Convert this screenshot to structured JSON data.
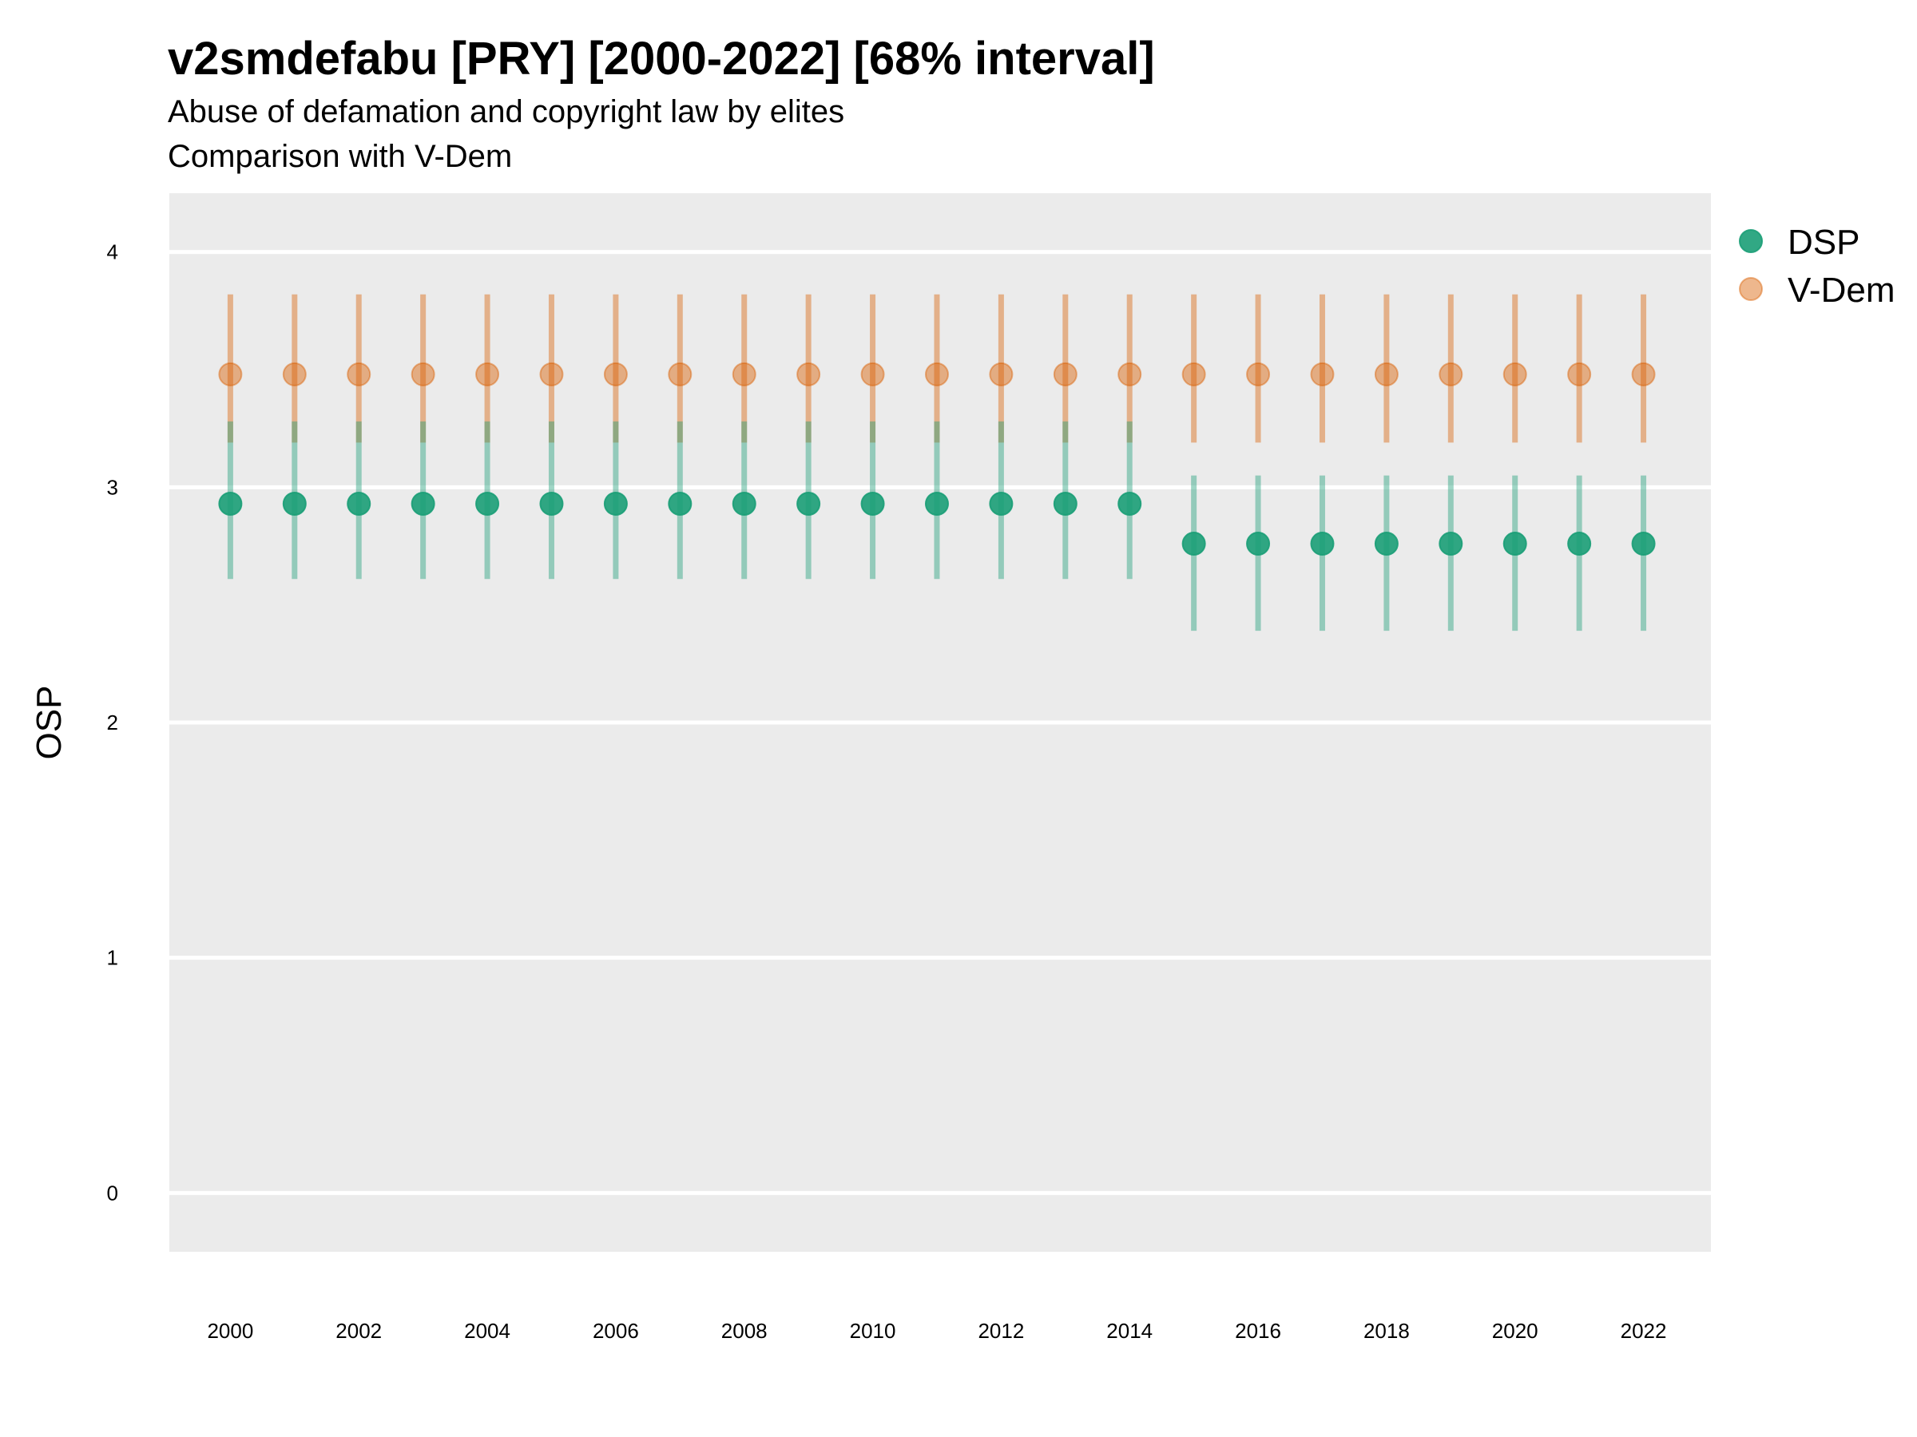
{
  "chart_data": {
    "type": "scatter",
    "title": "v2smdefabu [PRY] [2000-2022] [68% interval]",
    "subtitle_line1": "Abuse of defamation and copyright law by elites",
    "subtitle_line2": "Comparison with V-Dem",
    "ylabel": "OSP",
    "xlabel": "",
    "ylim": [
      -0.25,
      4.25
    ],
    "xlim": [
      1999.05,
      2023.05
    ],
    "y_ticks": [
      "0",
      "1",
      "2",
      "3",
      "4"
    ],
    "x_ticks": [
      "2000",
      "2002",
      "2004",
      "2006",
      "2008",
      "2010",
      "2012",
      "2014",
      "2016",
      "2018",
      "2020",
      "2022"
    ],
    "grid": true,
    "legend_position": "right",
    "x": [
      2000,
      2001,
      2002,
      2003,
      2004,
      2005,
      2006,
      2007,
      2008,
      2009,
      2010,
      2011,
      2012,
      2013,
      2014,
      2015,
      2016,
      2017,
      2018,
      2019,
      2020,
      2021,
      2022
    ],
    "series": [
      {
        "name": "DSP",
        "color": "#1b9e77",
        "values": [
          2.93,
          2.93,
          2.93,
          2.93,
          2.93,
          2.93,
          2.93,
          2.93,
          2.93,
          2.93,
          2.93,
          2.93,
          2.93,
          2.93,
          2.93,
          2.76,
          2.76,
          2.76,
          2.76,
          2.76,
          2.76,
          2.76,
          2.76
        ],
        "lower": [
          2.61,
          2.61,
          2.61,
          2.61,
          2.61,
          2.61,
          2.61,
          2.61,
          2.61,
          2.61,
          2.61,
          2.61,
          2.61,
          2.61,
          2.61,
          2.39,
          2.39,
          2.39,
          2.39,
          2.39,
          2.39,
          2.39,
          2.39
        ],
        "upper": [
          3.28,
          3.28,
          3.28,
          3.28,
          3.28,
          3.28,
          3.28,
          3.28,
          3.28,
          3.28,
          3.28,
          3.28,
          3.28,
          3.28,
          3.28,
          3.05,
          3.05,
          3.05,
          3.05,
          3.05,
          3.05,
          3.05,
          3.05
        ]
      },
      {
        "name": "V-Dem",
        "color": "#d95f02",
        "values": [
          3.48,
          3.48,
          3.48,
          3.48,
          3.48,
          3.48,
          3.48,
          3.48,
          3.48,
          3.48,
          3.48,
          3.48,
          3.48,
          3.48,
          3.48,
          3.48,
          3.48,
          3.48,
          3.48,
          3.48,
          3.48,
          3.48,
          3.48
        ],
        "lower": [
          3.19,
          3.19,
          3.19,
          3.19,
          3.19,
          3.19,
          3.19,
          3.19,
          3.19,
          3.19,
          3.19,
          3.19,
          3.19,
          3.19,
          3.19,
          3.19,
          3.19,
          3.19,
          3.19,
          3.19,
          3.19,
          3.19,
          3.19
        ],
        "upper": [
          3.82,
          3.82,
          3.82,
          3.82,
          3.82,
          3.82,
          3.82,
          3.82,
          3.82,
          3.82,
          3.82,
          3.82,
          3.82,
          3.82,
          3.82,
          3.82,
          3.82,
          3.82,
          3.82,
          3.82,
          3.82,
          3.82,
          3.82
        ]
      }
    ]
  }
}
